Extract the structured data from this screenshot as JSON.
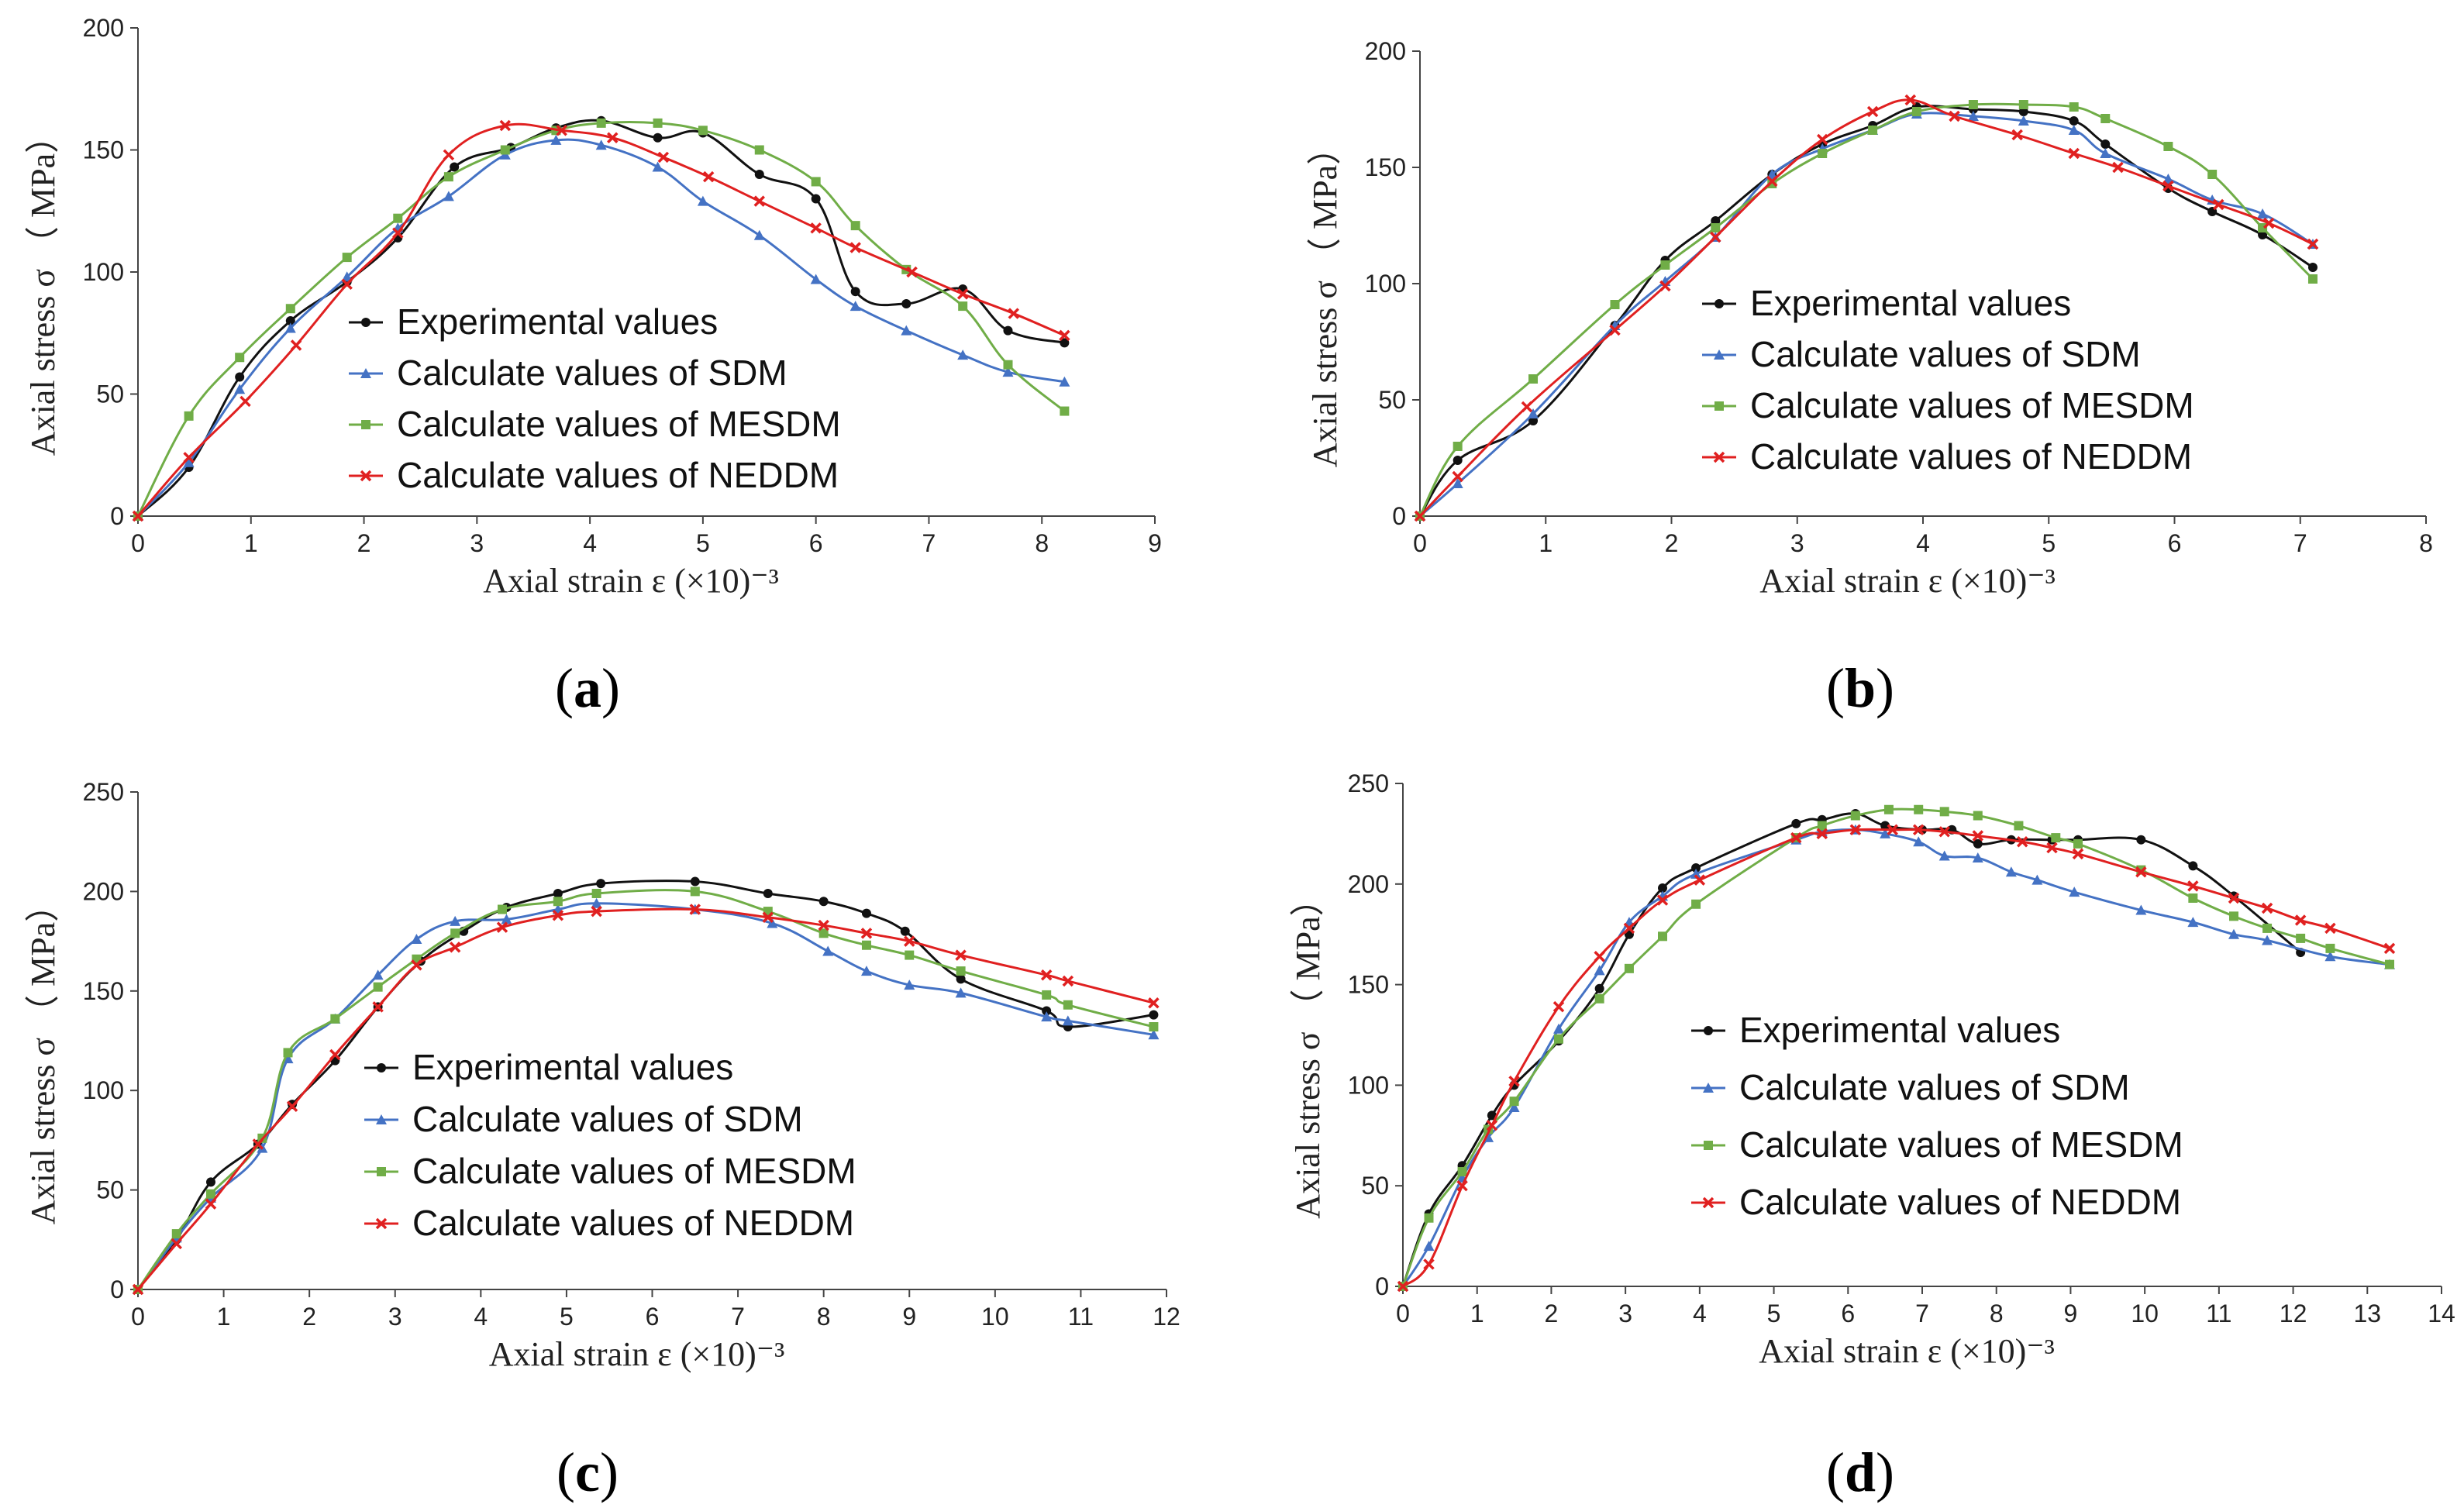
{
  "colors": {
    "experimental": "#111111",
    "sdm": "#4472C4",
    "mesdm": "#70AD47",
    "neddm": "#E02020"
  },
  "chart_data": [
    {
      "id": "a",
      "type": "line",
      "panel_label": "a",
      "xlabel": "Axial strain ε (×10)⁻³",
      "ylabel": "Axial  stress σ （ MPa）",
      "xlim": [
        0,
        9
      ],
      "ylim": [
        0,
        200
      ],
      "xticks": [
        0,
        1,
        2,
        3,
        4,
        5,
        6,
        7,
        8,
        9
      ],
      "yticks": [
        0,
        50,
        100,
        150,
        200
      ],
      "legend_placement": "center",
      "series": [
        {
          "name": "Experimental values",
          "key": "experimental",
          "marker": "circle",
          "x": [
            0,
            0.45,
            0.9,
            1.35,
            1.85,
            2.3,
            2.8,
            3.3,
            3.7,
            4.1,
            4.6,
            5.0,
            5.5,
            6.0,
            6.35,
            6.8,
            7.3,
            7.7,
            8.2
          ],
          "y": [
            0,
            20,
            57,
            80,
            96,
            114,
            143,
            151,
            159,
            162,
            155,
            157,
            140,
            130,
            92,
            87,
            93,
            76,
            71
          ]
        },
        {
          "name": "Calculate values of SDM",
          "key": "sdm",
          "marker": "triangle",
          "x": [
            0,
            0.45,
            0.9,
            1.35,
            1.85,
            2.3,
            2.75,
            3.25,
            3.7,
            4.1,
            4.6,
            5.0,
            5.5,
            6.0,
            6.35,
            6.8,
            7.3,
            7.7,
            8.2
          ],
          "y": [
            0,
            22,
            52,
            77,
            98,
            118,
            131,
            148,
            154,
            152,
            143,
            129,
            115,
            97,
            86,
            76,
            66,
            59,
            55
          ]
        },
        {
          "name": "Calculate values of MESDM",
          "key": "mesdm",
          "marker": "square",
          "x": [
            0,
            0.45,
            0.9,
            1.35,
            1.85,
            2.3,
            2.75,
            3.25,
            3.7,
            4.1,
            4.6,
            5.0,
            5.5,
            6.0,
            6.35,
            6.8,
            7.3,
            7.7,
            8.2
          ],
          "y": [
            0,
            41,
            65,
            85,
            106,
            122,
            139,
            150,
            158,
            161,
            161,
            158,
            150,
            137,
            119,
            101,
            86,
            62,
            43
          ]
        },
        {
          "name": "Calculate values of NEDDM",
          "key": "neddm",
          "marker": "x",
          "x": [
            0,
            0.45,
            0.95,
            1.4,
            1.85,
            2.3,
            2.75,
            3.25,
            3.75,
            4.2,
            4.65,
            5.05,
            5.5,
            6.0,
            6.35,
            6.85,
            7.3,
            7.75,
            8.2
          ],
          "y": [
            0,
            24,
            47,
            70,
            95,
            116,
            148,
            160,
            158,
            155,
            147,
            139,
            129,
            118,
            110,
            100,
            91,
            83,
            74
          ]
        }
      ]
    },
    {
      "id": "b",
      "type": "line",
      "panel_label": "b",
      "xlabel": "Axial strain ε (×10)⁻³",
      "ylabel": "Axial  stress σ （ MPa）",
      "xlim": [
        0,
        8
      ],
      "ylim": [
        0,
        200
      ],
      "xticks": [
        0,
        1,
        2,
        3,
        4,
        5,
        6,
        7,
        8
      ],
      "yticks": [
        0,
        50,
        100,
        150,
        200
      ],
      "legend_placement": "center",
      "series": [
        {
          "name": "Experimental values",
          "key": "experimental",
          "marker": "circle",
          "x": [
            0,
            0.3,
            0.9,
            1.55,
            1.95,
            2.35,
            2.8,
            3.2,
            3.6,
            3.95,
            4.4,
            4.8,
            5.2,
            5.45,
            5.95,
            6.3,
            6.7,
            7.1
          ],
          "y": [
            0,
            24,
            41,
            82,
            110,
            127,
            147,
            160,
            168,
            176,
            175,
            174,
            170,
            160,
            141,
            131,
            121,
            107
          ]
        },
        {
          "name": "Calculate values of SDM",
          "key": "sdm",
          "marker": "triangle",
          "x": [
            0,
            0.3,
            0.9,
            1.55,
            1.95,
            2.35,
            2.8,
            3.2,
            3.6,
            3.95,
            4.4,
            4.8,
            5.2,
            5.45,
            5.95,
            6.3,
            6.7,
            7.1
          ],
          "y": [
            0,
            14,
            44,
            82,
            101,
            120,
            147,
            158,
            166,
            173,
            172,
            170,
            166,
            156,
            145,
            136,
            130,
            117
          ]
        },
        {
          "name": "Calculate values of MESDM",
          "key": "mesdm",
          "marker": "square",
          "x": [
            0,
            0.3,
            0.9,
            1.55,
            1.95,
            2.35,
            2.8,
            3.2,
            3.6,
            3.95,
            4.4,
            4.8,
            5.2,
            5.45,
            5.95,
            6.3,
            6.7,
            7.1
          ],
          "y": [
            0,
            30,
            59,
            91,
            108,
            124,
            143,
            156,
            166,
            174,
            177,
            177,
            176,
            171,
            159,
            147,
            124,
            102
          ]
        },
        {
          "name": "Calculate values of NEDDM",
          "key": "neddm",
          "marker": "x",
          "x": [
            0,
            0.3,
            0.85,
            1.55,
            1.95,
            2.35,
            2.8,
            3.2,
            3.6,
            3.9,
            4.25,
            4.75,
            5.2,
            5.55,
            5.95,
            6.35,
            6.75,
            7.1
          ],
          "y": [
            0,
            17,
            47,
            80,
            99,
            120,
            144,
            162,
            174,
            179,
            172,
            164,
            156,
            150,
            142,
            134,
            126,
            117
          ]
        }
      ]
    },
    {
      "id": "c",
      "type": "line",
      "panel_label": "c",
      "xlabel": "Axial strain ε (×10)⁻³",
      "ylabel": "Axial  stress σ （ MPa）",
      "xlim": [
        0,
        12
      ],
      "ylim": [
        0,
        250
      ],
      "xticks": [
        0,
        1,
        2,
        3,
        4,
        5,
        6,
        7,
        8,
        9,
        10,
        11,
        12
      ],
      "yticks": [
        0,
        50,
        100,
        150,
        200,
        250
      ],
      "legend_placement": "center",
      "series": [
        {
          "name": "Experimental values",
          "key": "experimental",
          "marker": "circle",
          "x": [
            0,
            0.45,
            0.85,
            1.4,
            1.8,
            2.3,
            2.8,
            3.3,
            3.8,
            4.3,
            4.9,
            5.4,
            6.5,
            7.35,
            8.0,
            8.5,
            8.95,
            9.6,
            10.6,
            10.85,
            11.85
          ],
          "y": [
            0,
            25,
            54,
            73,
            93,
            115,
            142,
            165,
            180,
            192,
            199,
            204,
            205,
            199,
            195,
            189,
            180,
            156,
            140,
            132,
            138
          ]
        },
        {
          "name": "Calculate values of SDM",
          "key": "sdm",
          "marker": "triangle",
          "x": [
            0,
            0.45,
            0.85,
            1.45,
            1.75,
            2.3,
            2.8,
            3.25,
            3.7,
            4.3,
            4.9,
            5.35,
            6.5,
            7.4,
            8.05,
            8.5,
            9.0,
            9.6,
            10.6,
            10.85,
            11.85
          ],
          "y": [
            0,
            26,
            46,
            71,
            116,
            136,
            158,
            176,
            185,
            186,
            191,
            194,
            191,
            184,
            170,
            160,
            153,
            149,
            137,
            135,
            128
          ]
        },
        {
          "name": "Calculate values of MESDM",
          "key": "mesdm",
          "marker": "square",
          "x": [
            0,
            0.45,
            0.85,
            1.45,
            1.75,
            2.3,
            2.8,
            3.25,
            3.7,
            4.25,
            4.9,
            5.35,
            6.5,
            7.35,
            8.0,
            8.5,
            9.0,
            9.6,
            10.6,
            10.85,
            11.85
          ],
          "y": [
            0,
            28,
            48,
            76,
            119,
            136,
            152,
            166,
            179,
            191,
            195,
            199,
            200,
            190,
            179,
            173,
            168,
            160,
            148,
            143,
            132
          ]
        },
        {
          "name": "Calculate values of NEDDM",
          "key": "neddm",
          "marker": "x",
          "x": [
            0,
            0.45,
            0.85,
            1.4,
            1.8,
            2.3,
            2.8,
            3.25,
            3.7,
            4.25,
            4.9,
            5.35,
            6.5,
            7.35,
            8.0,
            8.5,
            9.0,
            9.6,
            10.6,
            10.85,
            11.85
          ],
          "y": [
            0,
            23,
            43,
            73,
            92,
            118,
            142,
            163,
            172,
            182,
            188,
            190,
            191,
            187,
            183,
            179,
            175,
            168,
            158,
            155,
            144
          ]
        }
      ]
    },
    {
      "id": "d",
      "type": "line",
      "panel_label": "d",
      "xlabel": "Axial strain ε (×10)⁻³",
      "ylabel": "Axial  stress σ （ MPa）",
      "xlim": [
        0,
        14
      ],
      "ylim": [
        0,
        250
      ],
      "xticks": [
        0,
        1,
        2,
        3,
        4,
        5,
        6,
        7,
        8,
        9,
        10,
        11,
        12,
        13,
        14
      ],
      "yticks": [
        0,
        50,
        100,
        150,
        200,
        250
      ],
      "legend_placement": "center-right",
      "series": [
        {
          "name": "Experimental values",
          "key": "experimental",
          "marker": "circle",
          "x": [
            0,
            0.35,
            0.8,
            1.2,
            1.5,
            2.1,
            2.65,
            3.05,
            3.5,
            3.95,
            5.3,
            5.65,
            6.1,
            6.5,
            7.0,
            7.4,
            7.75,
            8.2,
            8.75,
            9.1,
            9.95,
            10.65,
            11.2,
            12.1
          ],
          "y": [
            0,
            36,
            60,
            85,
            100,
            122,
            148,
            175,
            198,
            208,
            230,
            232,
            235,
            229,
            227,
            227,
            220,
            222,
            222,
            222,
            222,
            209,
            194,
            166
          ]
        },
        {
          "name": "Calculate values of SDM",
          "key": "sdm",
          "marker": "triangle",
          "x": [
            0,
            0.35,
            0.8,
            1.15,
            1.5,
            2.1,
            2.65,
            3.05,
            3.5,
            3.95,
            5.3,
            5.65,
            6.1,
            6.5,
            6.95,
            7.3,
            7.75,
            8.2,
            8.55,
            9.05,
            9.95,
            10.65,
            11.2,
            11.65,
            12.5,
            13.3
          ],
          "y": [
            0,
            20,
            54,
            74,
            89,
            128,
            157,
            181,
            194,
            205,
            222,
            226,
            227,
            225,
            221,
            214,
            213,
            206,
            202,
            196,
            187,
            181,
            175,
            172,
            164,
            160
          ]
        },
        {
          "name": "Calculate values of MESDM",
          "key": "mesdm",
          "marker": "square",
          "x": [
            0,
            0.35,
            0.8,
            1.15,
            1.5,
            2.1,
            2.65,
            3.05,
            3.5,
            3.95,
            5.3,
            5.65,
            6.1,
            6.55,
            6.95,
            7.3,
            7.75,
            8.3,
            8.8,
            9.1,
            9.95,
            10.65,
            11.2,
            11.65,
            12.1,
            12.5,
            13.3
          ],
          "y": [
            0,
            34,
            57,
            78,
            92,
            123,
            143,
            158,
            174,
            190,
            223,
            229,
            234,
            237,
            237,
            236,
            234,
            229,
            223,
            220,
            207,
            193,
            184,
            178,
            173,
            168,
            160
          ]
        },
        {
          "name": "Calculate values of NEDDM",
          "key": "neddm",
          "marker": "x",
          "x": [
            0,
            0.35,
            0.8,
            1.2,
            1.5,
            2.1,
            2.65,
            3.05,
            3.5,
            4.0,
            5.3,
            5.65,
            6.1,
            6.6,
            6.95,
            7.3,
            7.75,
            8.35,
            8.75,
            9.1,
            9.95,
            10.65,
            11.2,
            11.65,
            12.1,
            12.5,
            13.3
          ],
          "y": [
            0,
            11,
            50,
            80,
            102,
            139,
            164,
            178,
            192,
            202,
            223,
            225,
            227,
            227,
            227,
            226,
            224,
            221,
            218,
            215,
            206,
            199,
            193,
            188,
            182,
            178,
            168
          ]
        }
      ]
    }
  ]
}
